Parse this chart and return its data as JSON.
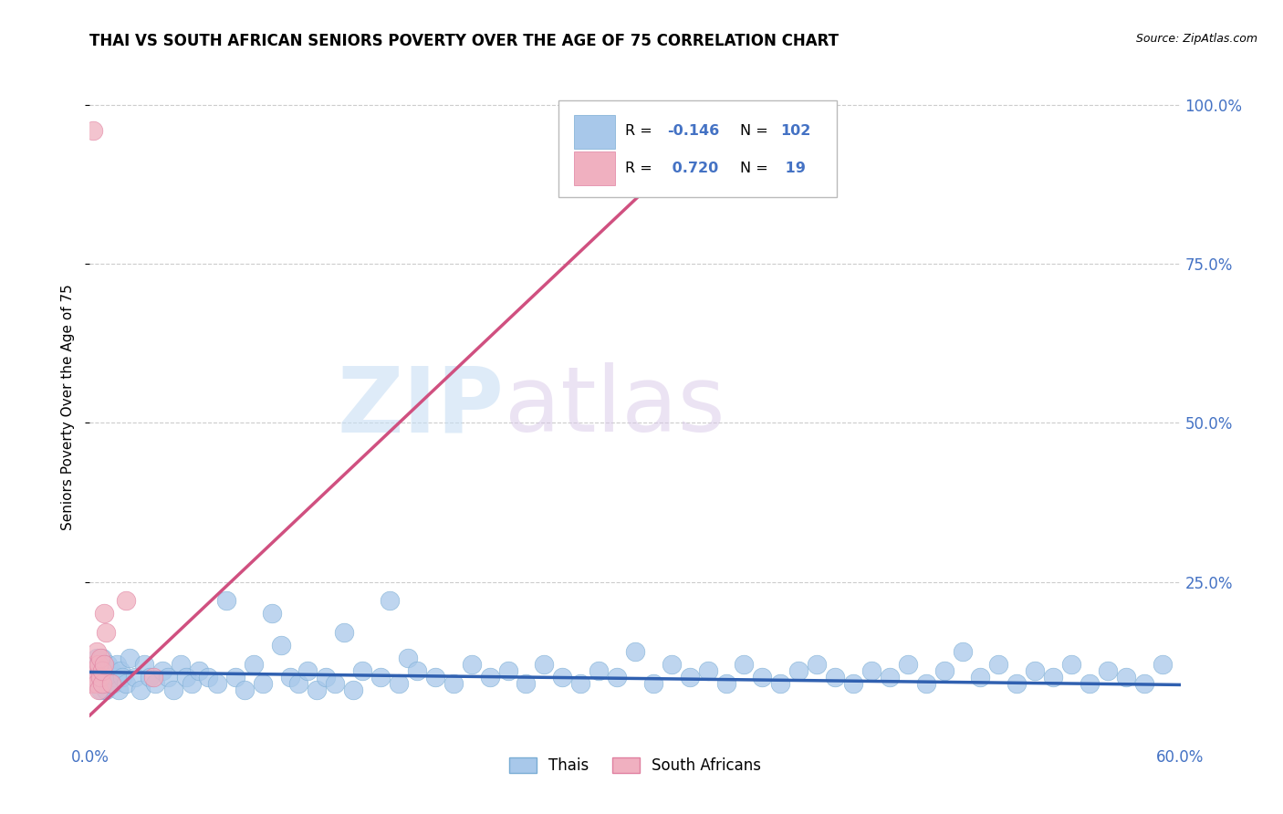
{
  "title": "THAI VS SOUTH AFRICAN SENIORS POVERTY OVER THE AGE OF 75 CORRELATION CHART",
  "source": "Source: ZipAtlas.com",
  "ylabel": "Seniors Poverty Over the Age of 75",
  "xlim": [
    0.0,
    0.6
  ],
  "ylim": [
    0.0,
    1.05
  ],
  "xticks": [
    0.0,
    0.1,
    0.2,
    0.3,
    0.4,
    0.5,
    0.6
  ],
  "xticklabels": [
    "0.0%",
    "",
    "",
    "",
    "",
    "",
    "60.0%"
  ],
  "yticks": [
    0.25,
    0.5,
    0.75,
    1.0
  ],
  "yticklabels": [
    "25.0%",
    "50.0%",
    "75.0%",
    "100.0%"
  ],
  "grid_color": "#cccccc",
  "background_color": "#ffffff",
  "watermark_zip": "ZIP",
  "watermark_atlas": "atlas",
  "thai_color": "#a8c8ea",
  "thai_edge_color": "#7aadd4",
  "sa_color": "#f0b0c0",
  "sa_edge_color": "#e080a0",
  "thai_line_color": "#3060b0",
  "sa_line_color": "#d05080",
  "thai_scatter_x": [
    0.002,
    0.003,
    0.004,
    0.004,
    0.005,
    0.005,
    0.006,
    0.006,
    0.007,
    0.007,
    0.008,
    0.008,
    0.009,
    0.009,
    0.01,
    0.01,
    0.011,
    0.012,
    0.013,
    0.014,
    0.015,
    0.016,
    0.017,
    0.018,
    0.02,
    0.022,
    0.025,
    0.028,
    0.03,
    0.033,
    0.036,
    0.04,
    0.043,
    0.046,
    0.05,
    0.053,
    0.056,
    0.06,
    0.065,
    0.07,
    0.075,
    0.08,
    0.085,
    0.09,
    0.095,
    0.1,
    0.105,
    0.11,
    0.115,
    0.12,
    0.125,
    0.13,
    0.135,
    0.14,
    0.145,
    0.15,
    0.16,
    0.165,
    0.17,
    0.175,
    0.18,
    0.19,
    0.2,
    0.21,
    0.22,
    0.23,
    0.24,
    0.25,
    0.26,
    0.27,
    0.28,
    0.29,
    0.3,
    0.31,
    0.32,
    0.33,
    0.34,
    0.35,
    0.36,
    0.37,
    0.38,
    0.39,
    0.4,
    0.41,
    0.42,
    0.43,
    0.44,
    0.45,
    0.46,
    0.47,
    0.48,
    0.49,
    0.5,
    0.51,
    0.52,
    0.53,
    0.54,
    0.55,
    0.56,
    0.57,
    0.58,
    0.59
  ],
  "thai_scatter_y": [
    0.1,
    0.11,
    0.09,
    0.13,
    0.1,
    0.12,
    0.08,
    0.11,
    0.09,
    0.13,
    0.1,
    0.12,
    0.08,
    0.11,
    0.09,
    0.12,
    0.1,
    0.11,
    0.09,
    0.1,
    0.12,
    0.08,
    0.11,
    0.1,
    0.09,
    0.13,
    0.1,
    0.08,
    0.12,
    0.1,
    0.09,
    0.11,
    0.1,
    0.08,
    0.12,
    0.1,
    0.09,
    0.11,
    0.1,
    0.09,
    0.22,
    0.1,
    0.08,
    0.12,
    0.09,
    0.2,
    0.15,
    0.1,
    0.09,
    0.11,
    0.08,
    0.1,
    0.09,
    0.17,
    0.08,
    0.11,
    0.1,
    0.22,
    0.09,
    0.13,
    0.11,
    0.1,
    0.09,
    0.12,
    0.1,
    0.11,
    0.09,
    0.12,
    0.1,
    0.09,
    0.11,
    0.1,
    0.14,
    0.09,
    0.12,
    0.1,
    0.11,
    0.09,
    0.12,
    0.1,
    0.09,
    0.11,
    0.12,
    0.1,
    0.09,
    0.11,
    0.1,
    0.12,
    0.09,
    0.11,
    0.14,
    0.1,
    0.12,
    0.09,
    0.11,
    0.1,
    0.12,
    0.09,
    0.11,
    0.1,
    0.09,
    0.12
  ],
  "sa_scatter_x": [
    0.001,
    0.002,
    0.003,
    0.003,
    0.004,
    0.004,
    0.005,
    0.005,
    0.006,
    0.006,
    0.007,
    0.007,
    0.008,
    0.008,
    0.009,
    0.012,
    0.02,
    0.035,
    0.002
  ],
  "sa_scatter_y": [
    0.09,
    0.11,
    0.1,
    0.12,
    0.09,
    0.14,
    0.08,
    0.12,
    0.1,
    0.13,
    0.09,
    0.11,
    0.12,
    0.2,
    0.17,
    0.09,
    0.22,
    0.1,
    0.96
  ],
  "thai_line_x0": 0.0,
  "thai_line_x1": 0.6,
  "thai_line_y0": 0.108,
  "thai_line_y1": 0.088,
  "sa_line_x0": 0.0,
  "sa_line_x1": 0.355,
  "sa_line_y0": 0.04,
  "sa_line_y1": 1.0,
  "legend_thai_label": "Thais",
  "legend_sa_label": "South Africans",
  "thai_R_text": "R = ",
  "thai_R_val": "-0.146",
  "thai_N_text": "N = ",
  "thai_N_val": "102",
  "sa_R_text": "R = ",
  "sa_R_val": " 0.720",
  "sa_N_text": "N = ",
  "sa_N_val": " 19",
  "accent_color": "#4472c4"
}
